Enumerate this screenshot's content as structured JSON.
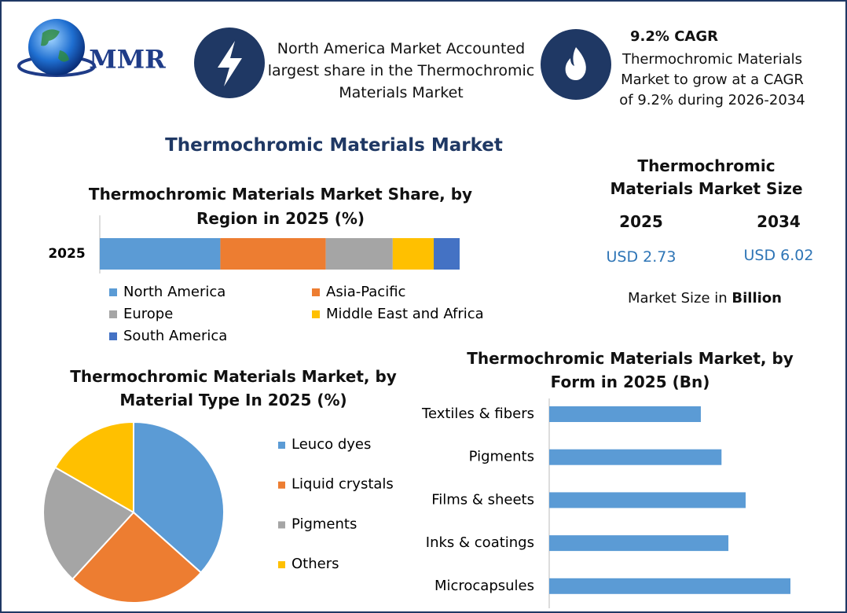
{
  "logo": "MMR",
  "header": {
    "items": [
      {
        "text": "North America Market Accounted largest share in the Thermochromic Materials Market"
      },
      {
        "title": "9.2% CAGR",
        "text": "Thermochromic Materials Market to grow at a CAGR of 9.2% during 2026-2034"
      }
    ]
  },
  "main_title": "Thermochromic Materials Market",
  "market_size": {
    "title": "Thermochromic Materials Market Size",
    "columns": [
      {
        "year": "2025",
        "value": "USD 2.73"
      },
      {
        "year": "2034",
        "value": "USD 6.02"
      }
    ],
    "note": {
      "text": "Market Size in",
      "emphasis": "Billion"
    }
  },
  "chart_data": [
    {
      "type": "stacked_bar",
      "title": "Thermochromic Materials Market Share, by Region in 2025 (%)",
      "categories": [
        "2025"
      ],
      "series": [
        {
          "name": "North America",
          "color": "#5b9bd5",
          "values": [
            33.5
          ]
        },
        {
          "name": "Asia-Pacific",
          "color": "#ed7d31",
          "values": [
            29.3
          ]
        },
        {
          "name": "Europe",
          "color": "#a5a5a5",
          "values": [
            18.6
          ]
        },
        {
          "name": "Middle East and Africa",
          "color": "#ffc000",
          "values": [
            11.4
          ]
        },
        {
          "name": "South America",
          "color": "#4472c4",
          "values": [
            7.2
          ]
        }
      ]
    },
    {
      "type": "pie",
      "title": "Thermochromic Materials Market, by Material Type In 2025 (%)",
      "categories": [
        "Leuco dyes",
        "Liquid crystals",
        "Pigments",
        "Others"
      ],
      "values": [
        36.6,
        25.2,
        21.5,
        16.7
      ],
      "colors": [
        "#5b9bd5",
        "#ed7d31",
        "#a5a5a5",
        "#ffc000"
      ]
    },
    {
      "type": "hbar",
      "title": "Thermochromic Materials Market, by Form in 2025 (Bn)",
      "categories": [
        "Textiles & fibers",
        "Pigments",
        "Films & sheets",
        "Inks & coatings",
        "Microcapsules"
      ],
      "values": [
        0.44,
        0.5,
        0.57,
        0.52,
        0.7
      ],
      "color": "#5b9bd5"
    }
  ]
}
